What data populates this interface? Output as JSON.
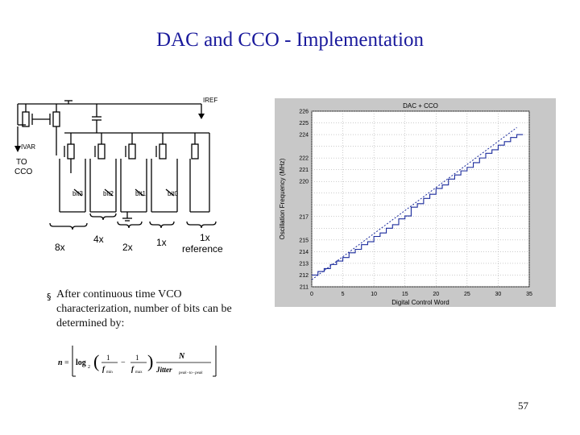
{
  "slide": {
    "title": "DAC and CCO - Implementation",
    "page_number": "57"
  },
  "circuit": {
    "iref_label": "IREF",
    "ivaw_label": "IVAR",
    "to_cco_line1": "TO",
    "to_cco_line2": "CCO",
    "bit_labels": [
      "bit3",
      "bit2",
      "bit1",
      "bit0"
    ],
    "weights": [
      "8x",
      "4x",
      "2x",
      "1x",
      "1x"
    ],
    "reference_label": "reference"
  },
  "bullet": {
    "text": "After continuous time VCO characterization, number of bits can be determined by:"
  },
  "formula": {
    "lhs": "n",
    "log": "log",
    "log_base": "2",
    "f_min": "f",
    "f_min_sub": "min",
    "f_max": "f",
    "f_max_sub": "max",
    "one": "1",
    "N": "N",
    "jitter": "Jitter",
    "jitter_sub": "peak−to−peak"
  },
  "chart_data": {
    "type": "line",
    "title": "DAC + CCO",
    "xlabel": "Digital Control Word",
    "ylabel": "Oscillation Frequency (MHz)",
    "xlim": [
      0,
      35
    ],
    "ylim": [
      211,
      226
    ],
    "x_ticks": [
      0,
      5,
      10,
      15,
      20,
      25,
      30,
      35
    ],
    "y_ticks": [
      211,
      212,
      213,
      214,
      215,
      216,
      217,
      218,
      219,
      220,
      221,
      222,
      223,
      224,
      225,
      226
    ],
    "y_tick_labels": [
      "211",
      "212",
      "213",
      "214",
      "215",
      "",
      "217",
      "",
      "",
      "220",
      "221",
      "222",
      "",
      "224",
      "225",
      "226"
    ],
    "grid": true,
    "series": [
      {
        "style": "staircase",
        "x": [
          0,
          1,
          2,
          3,
          4,
          5,
          6,
          7,
          8,
          9,
          10,
          11,
          12,
          13,
          14,
          15,
          16,
          17,
          18,
          19,
          20,
          21,
          22,
          23,
          24,
          25,
          26,
          27,
          28,
          29,
          30,
          31,
          32,
          33
        ],
        "values": [
          212.0,
          212.3,
          212.55,
          212.9,
          213.2,
          213.5,
          213.9,
          214.2,
          214.6,
          214.85,
          215.3,
          215.6,
          216.0,
          216.3,
          216.8,
          217.05,
          217.8,
          218.1,
          218.55,
          218.9,
          219.4,
          219.7,
          220.2,
          220.55,
          220.9,
          221.2,
          221.6,
          222.0,
          222.4,
          222.7,
          223.1,
          223.4,
          223.75,
          224.0
        ]
      },
      {
        "style": "dashed-fit",
        "x": [
          0,
          33
        ],
        "values": [
          211.6,
          224.6
        ]
      }
    ]
  }
}
